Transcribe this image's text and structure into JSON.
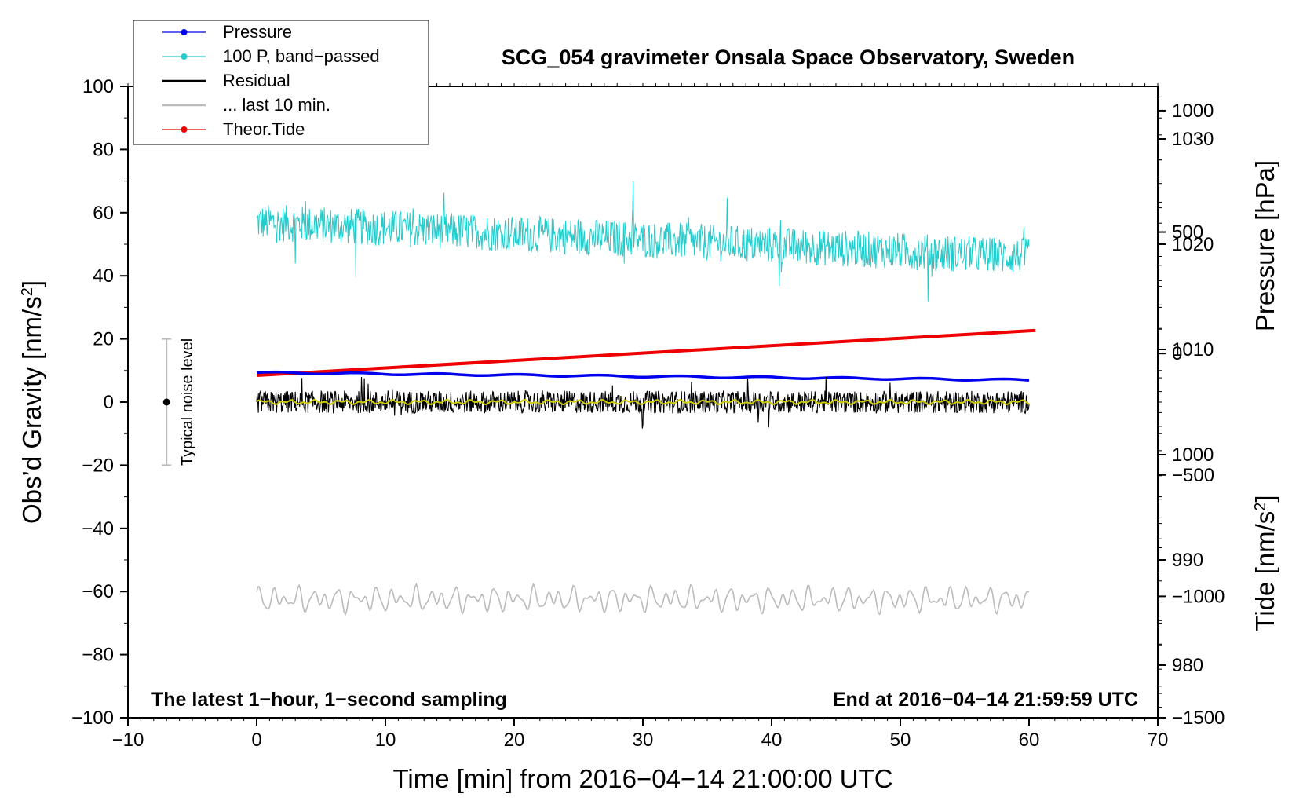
{
  "chart_data": {
    "type": "line",
    "title": "SCG_054 gravimeter Onsala Space Observatory, Sweden",
    "xlabel": "Time [min] from 2016−04−14 21:00:00 UTC",
    "ylabel_left": "Obs’d Gravity [nm/s",
    "ylabel_left_sup": "2",
    "ylabel_left_end": "]",
    "ylabel_right_pressure": "Pressure [hPa]",
    "ylabel_right_tide": "Tide [nm/s",
    "ylabel_right_tide_sup": "2",
    "ylabel_right_tide_end": "]",
    "xlim": [
      -10,
      70
    ],
    "ylim_left": [
      -100,
      100
    ],
    "pressure_axis_range": [
      975,
      1035
    ],
    "tide_axis_range": [
      -1500,
      1100
    ],
    "x_ticks": [
      {
        "value": -10,
        "label": "−10"
      },
      {
        "value": 0,
        "label": "0"
      },
      {
        "value": 10,
        "label": "10"
      },
      {
        "value": 20,
        "label": "20"
      },
      {
        "value": 30,
        "label": "30"
      },
      {
        "value": 40,
        "label": "40"
      },
      {
        "value": 50,
        "label": "50"
      },
      {
        "value": 60,
        "label": "60"
      },
      {
        "value": 70,
        "label": "70"
      }
    ],
    "y_ticks_left": [
      {
        "value": 100,
        "label": "100"
      },
      {
        "value": 80,
        "label": "80"
      },
      {
        "value": 60,
        "label": "60"
      },
      {
        "value": 40,
        "label": "40"
      },
      {
        "value": 20,
        "label": "20"
      },
      {
        "value": 0,
        "label": "0"
      },
      {
        "value": -20,
        "label": "−20"
      },
      {
        "value": -40,
        "label": "−40"
      },
      {
        "value": -60,
        "label": "−60"
      },
      {
        "value": -80,
        "label": "−80"
      },
      {
        "value": -100,
        "label": "−100"
      }
    ],
    "pressure_ticks": [
      {
        "value": 1030,
        "label": "1030"
      },
      {
        "value": 1020,
        "label": "1020"
      },
      {
        "value": 1010,
        "label": "1010"
      },
      {
        "value": 1000,
        "label": "1000"
      },
      {
        "value": 990,
        "label": "990"
      },
      {
        "value": 980,
        "label": "980"
      }
    ],
    "tide_ticks": [
      {
        "value": 1000,
        "label": "1000"
      },
      {
        "value": 500,
        "label": "500"
      },
      {
        "value": 0,
        "label": "0"
      },
      {
        "value": -500,
        "label": "−500"
      },
      {
        "value": -1000,
        "label": "−1000"
      },
      {
        "value": -1500,
        "label": "−1500"
      }
    ],
    "legend": [
      {
        "label": "Pressure",
        "color": "#0000ee",
        "marker": true
      },
      {
        "label": "100 P, band−passed",
        "color": "#22cccc",
        "marker": true
      },
      {
        "label": "Residual",
        "color": "#000000",
        "marker": false
      },
      {
        "label": "... last 10 min.",
        "color": "#bbbbbb",
        "marker": false
      },
      {
        "label": "Theor.Tide",
        "color": "#ee0000",
        "marker": true
      }
    ],
    "legend_position": "top-left",
    "grid": false,
    "series": [
      {
        "key": "pressure",
        "color": "#0000ee",
        "axis": "pressure",
        "x_range": [
          0,
          60
        ],
        "start": 1007.8,
        "end": 1007.1
      },
      {
        "key": "band_passed",
        "color": "#22cccc",
        "axis": "left",
        "x_range": [
          0,
          60
        ],
        "center_start": 57,
        "center_end": 46,
        "amplitude": 4.5
      },
      {
        "key": "residual",
        "color": "#000000",
        "axis": "left",
        "x_range": [
          0,
          60
        ],
        "center": 0,
        "amplitude": 3
      },
      {
        "key": "residual_smoothed",
        "color": "#cccc00",
        "axis": "left",
        "x_range": [
          0,
          60
        ],
        "center": 0,
        "amplitude": 0.7
      },
      {
        "key": "last_10_min",
        "color": "#bbbbbb",
        "axis": "left",
        "x_range": [
          0,
          60
        ],
        "center": -62.5,
        "amplitude": 3.5
      },
      {
        "key": "theor_tide",
        "color": "#ee0000",
        "axis": "tide",
        "x_range": [
          0,
          60.5
        ],
        "start": -90,
        "end": 95
      }
    ],
    "noise_indicator": {
      "label": "Typical noise level",
      "x": -7,
      "center": 0,
      "low": -20,
      "high": 20
    },
    "annotation_left": "The latest 1−hour, 1−second sampling",
    "annotation_right": "End at 2016−04−14 21:59:59 UTC"
  }
}
